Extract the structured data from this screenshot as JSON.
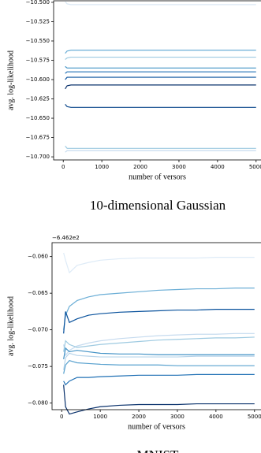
{
  "chart_data": [
    {
      "type": "line",
      "caption": "10-dimensional Gaussian",
      "xlabel": "number of versors",
      "ylabel": "avg. log-likelihood",
      "x": [
        50,
        100,
        200,
        400,
        700,
        1000,
        1500,
        2000,
        2500,
        3000,
        3500,
        4000,
        4500,
        5000
      ],
      "xlim": [
        -250,
        5250
      ],
      "xticks": [
        0,
        1000,
        2000,
        3000,
        4000,
        5000
      ],
      "ylim": [
        -10.704,
        -10.498
      ],
      "yticks": [
        {
          "value": -10.5,
          "label": "−10.500"
        },
        {
          "value": -10.525,
          "label": "−10.525"
        },
        {
          "value": -10.55,
          "label": "−10.550"
        },
        {
          "value": -10.575,
          "label": "−10.575"
        },
        {
          "value": -10.6,
          "label": "−10.600"
        },
        {
          "value": -10.625,
          "label": "−10.625"
        },
        {
          "value": -10.65,
          "label": "−10.650"
        },
        {
          "value": -10.675,
          "label": "−10.675"
        },
        {
          "value": -10.7,
          "label": "−10.700"
        }
      ],
      "series": [
        {
          "color": "#dbe9f6",
          "values": [
            -10.499,
            -10.502,
            -10.503,
            -10.503,
            -10.503,
            -10.503,
            -10.503,
            -10.503,
            -10.503,
            -10.503,
            -10.503,
            -10.503,
            -10.503,
            -10.503
          ]
        },
        {
          "color": "#6baed6",
          "values": [
            -10.566,
            -10.563,
            -10.562,
            -10.562,
            -10.562,
            -10.562,
            -10.562,
            -10.562,
            -10.562,
            -10.562,
            -10.562,
            -10.562,
            -10.562,
            -10.562
          ]
        },
        {
          "color": "#9ecae1",
          "values": [
            -10.574,
            -10.572,
            -10.571,
            -10.571,
            -10.571,
            -10.571,
            -10.571,
            -10.571,
            -10.571,
            -10.571,
            -10.571,
            -10.571,
            -10.571,
            -10.571
          ]
        },
        {
          "color": "#4292c6",
          "values": [
            -10.583,
            -10.585,
            -10.585,
            -10.585,
            -10.585,
            -10.585,
            -10.585,
            -10.585,
            -10.585,
            -10.585,
            -10.585,
            -10.585,
            -10.585,
            -10.585
          ]
        },
        {
          "color": "#2171b5",
          "values": [
            -10.592,
            -10.59,
            -10.59,
            -10.59,
            -10.59,
            -10.59,
            -10.59,
            -10.59,
            -10.59,
            -10.59,
            -10.59,
            -10.59,
            -10.59,
            -10.59
          ]
        },
        {
          "color": "#08519c",
          "values": [
            -10.6,
            -10.597,
            -10.597,
            -10.597,
            -10.597,
            -10.597,
            -10.597,
            -10.597,
            -10.597,
            -10.597,
            -10.597,
            -10.597,
            -10.597,
            -10.597
          ]
        },
        {
          "color": "#08306b",
          "values": [
            -10.612,
            -10.608,
            -10.607,
            -10.607,
            -10.607,
            -10.607,
            -10.607,
            -10.607,
            -10.607,
            -10.607,
            -10.607,
            -10.607,
            -10.607,
            -10.607
          ]
        },
        {
          "color": "#08458a",
          "values": [
            -10.632,
            -10.635,
            -10.636,
            -10.636,
            -10.636,
            -10.636,
            -10.636,
            -10.636,
            -10.636,
            -10.636,
            -10.636,
            -10.636,
            -10.636,
            -10.636
          ]
        },
        {
          "color": "#9ecae1",
          "values": [
            -10.686,
            -10.689,
            -10.689,
            -10.689,
            -10.689,
            -10.689,
            -10.689,
            -10.689,
            -10.689,
            -10.689,
            -10.689,
            -10.689,
            -10.689,
            -10.689
          ]
        },
        {
          "color": "#c6dbef",
          "values": [
            -10.694,
            -10.692,
            -10.692,
            -10.692,
            -10.692,
            -10.692,
            -10.692,
            -10.692,
            -10.692,
            -10.692,
            -10.692,
            -10.692,
            -10.692,
            -10.692
          ]
        }
      ]
    },
    {
      "type": "line",
      "caption": "MNIST",
      "xlabel": "number of versors",
      "ylabel": "avg. log-likelihood",
      "y_offset": "−6.462e2",
      "x": [
        50,
        100,
        200,
        400,
        700,
        1000,
        1500,
        2000,
        2500,
        3000,
        3500,
        4000,
        4500,
        5000
      ],
      "xlim": [
        -250,
        5250
      ],
      "xticks": [
        0,
        1000,
        2000,
        3000,
        4000,
        5000
      ],
      "ylim": [
        -0.0809,
        -0.0581
      ],
      "yticks": [
        {
          "value": -0.06,
          "label": "−0.060"
        },
        {
          "value": -0.065,
          "label": "−0.065"
        },
        {
          "value": -0.07,
          "label": "−0.070"
        },
        {
          "value": -0.075,
          "label": "−0.075"
        },
        {
          "value": -0.08,
          "label": "−0.080"
        }
      ],
      "series": [
        {
          "color": "#deebf7",
          "values": [
            -0.0595,
            -0.0605,
            -0.0622,
            -0.0612,
            -0.0608,
            -0.0605,
            -0.0603,
            -0.0602,
            -0.0602,
            -0.0602,
            -0.0602,
            -0.0601,
            -0.0601,
            -0.0601
          ]
        },
        {
          "color": "#6baed6",
          "values": [
            -0.07,
            -0.068,
            -0.0668,
            -0.066,
            -0.0655,
            -0.0652,
            -0.065,
            -0.0648,
            -0.0646,
            -0.0645,
            -0.0644,
            -0.0644,
            -0.0643,
            -0.0643
          ]
        },
        {
          "color": "#08519c",
          "values": [
            -0.0705,
            -0.0675,
            -0.069,
            -0.0685,
            -0.068,
            -0.0678,
            -0.0676,
            -0.0675,
            -0.0674,
            -0.0673,
            -0.0673,
            -0.0672,
            -0.0672,
            -0.0672
          ]
        },
        {
          "color": "#c6dbef",
          "values": [
            -0.072,
            -0.0735,
            -0.0728,
            -0.0722,
            -0.0718,
            -0.0715,
            -0.0712,
            -0.071,
            -0.0708,
            -0.0707,
            -0.0706,
            -0.0706,
            -0.0705,
            -0.0705
          ]
        },
        {
          "color": "#9ecae1",
          "values": [
            -0.073,
            -0.0715,
            -0.072,
            -0.0724,
            -0.0722,
            -0.072,
            -0.0718,
            -0.0716,
            -0.0714,
            -0.0713,
            -0.0712,
            -0.0711,
            -0.0711,
            -0.071
          ]
        },
        {
          "color": "#4292c6",
          "values": [
            -0.074,
            -0.0725,
            -0.073,
            -0.0728,
            -0.073,
            -0.0732,
            -0.0733,
            -0.0733,
            -0.0734,
            -0.0734,
            -0.0734,
            -0.0734,
            -0.0734,
            -0.0734
          ]
        },
        {
          "color": "#b7d4ea",
          "values": [
            -0.0755,
            -0.0738,
            -0.0732,
            -0.0735,
            -0.0736,
            -0.0737,
            -0.0737,
            -0.0737,
            -0.0737,
            -0.0737,
            -0.0736,
            -0.0736,
            -0.0736,
            -0.0736
          ]
        },
        {
          "color": "#5aa2cf",
          "values": [
            -0.076,
            -0.0748,
            -0.0742,
            -0.0745,
            -0.0746,
            -0.0747,
            -0.0748,
            -0.0748,
            -0.0748,
            -0.0749,
            -0.0749,
            -0.0749,
            -0.0749,
            -0.0749
          ]
        },
        {
          "color": "#2171b5",
          "values": [
            -0.077,
            -0.0775,
            -0.077,
            -0.0765,
            -0.0765,
            -0.0764,
            -0.0763,
            -0.0762,
            -0.0762,
            -0.0762,
            -0.0761,
            -0.0761,
            -0.0761,
            -0.0761
          ]
        },
        {
          "color": "#08306b",
          "values": [
            -0.0775,
            -0.0805,
            -0.0815,
            -0.0812,
            -0.0808,
            -0.0805,
            -0.0803,
            -0.0802,
            -0.0802,
            -0.0802,
            -0.0801,
            -0.0801,
            -0.0801,
            -0.0801
          ]
        }
      ]
    }
  ]
}
